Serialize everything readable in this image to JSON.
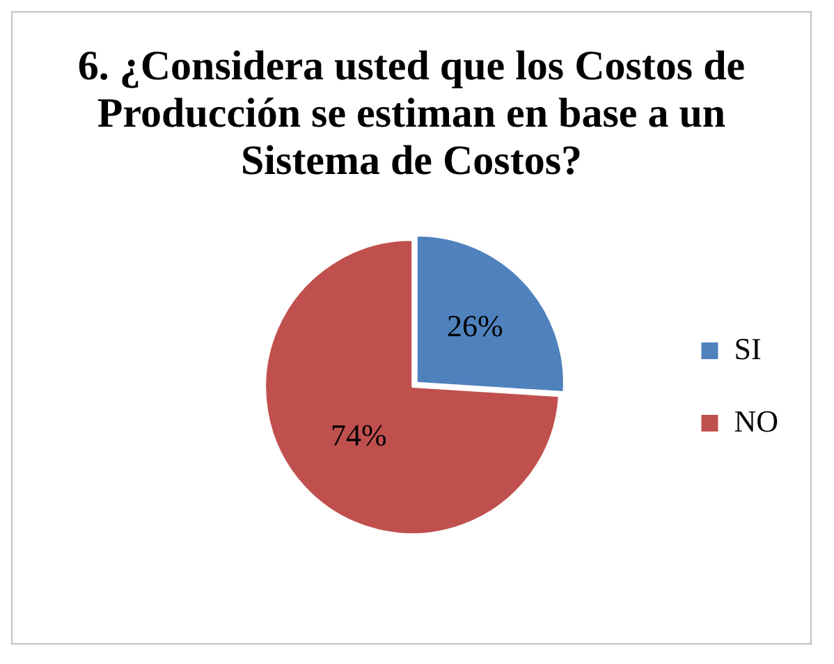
{
  "chart_data": {
    "type": "pie",
    "title": "6. ¿Considera usted que los Costos de Producción se estiman en base a un Sistema de Costos?",
    "categories": [
      "SI",
      "NO"
    ],
    "values": [
      26,
      74
    ],
    "value_labels": [
      "26%",
      "74%"
    ],
    "colors": [
      "#4f81bd",
      "#c0504d"
    ],
    "legend": "right"
  }
}
